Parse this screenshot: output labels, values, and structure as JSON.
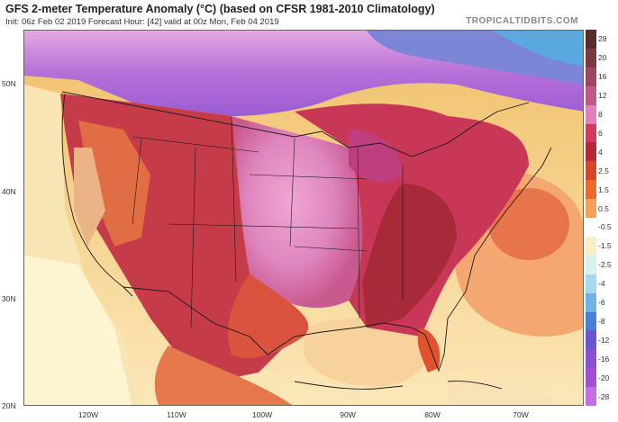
{
  "title": "GFS 2-meter Temperature Anomaly (°C) (based on CFSR 1981-2010 Climatology)",
  "subtitle": "Init: 06z Feb 02 2019   Forecast Hour: [42]   valid at 00z Mon, Feb 04 2019",
  "credit": "TROPICALTIDBITS.COM",
  "lat_labels": [
    "50N",
    "40N",
    "30N",
    "20N"
  ],
  "lon_labels": [
    "120W",
    "110W",
    "100W",
    "90W",
    "80W",
    "70W"
  ],
  "colorbar": {
    "labels": [
      "28",
      "20",
      "16",
      "12",
      "8",
      "6",
      "4",
      "2.5",
      "1.5",
      "0.5",
      "-0.5",
      "-1.5",
      "-2.5",
      "-4",
      "-6",
      "-8",
      "-12",
      "-16",
      "-20",
      "-28"
    ],
    "colors": [
      "#5a2d2a",
      "#7a3a3f",
      "#9e4660",
      "#c05a8a",
      "#e07fb8",
      "#d23a62",
      "#b52a3a",
      "#d4472a",
      "#ea6a2e",
      "#f4a05a",
      "#ffffff",
      "#f6f1c8",
      "#d7f0f0",
      "#a8d8ec",
      "#6fb3e4",
      "#4b7fd4",
      "#6b55d0",
      "#8a4fd0",
      "#a34fd4",
      "#c56fe0"
    ]
  },
  "colors": {
    "ocean_warm": "#f6c79a",
    "land_hot": "#c8365a",
    "central_pink": "#e390c6",
    "canada_purple": "#b87ad8",
    "borders": "#1a1a1a"
  }
}
